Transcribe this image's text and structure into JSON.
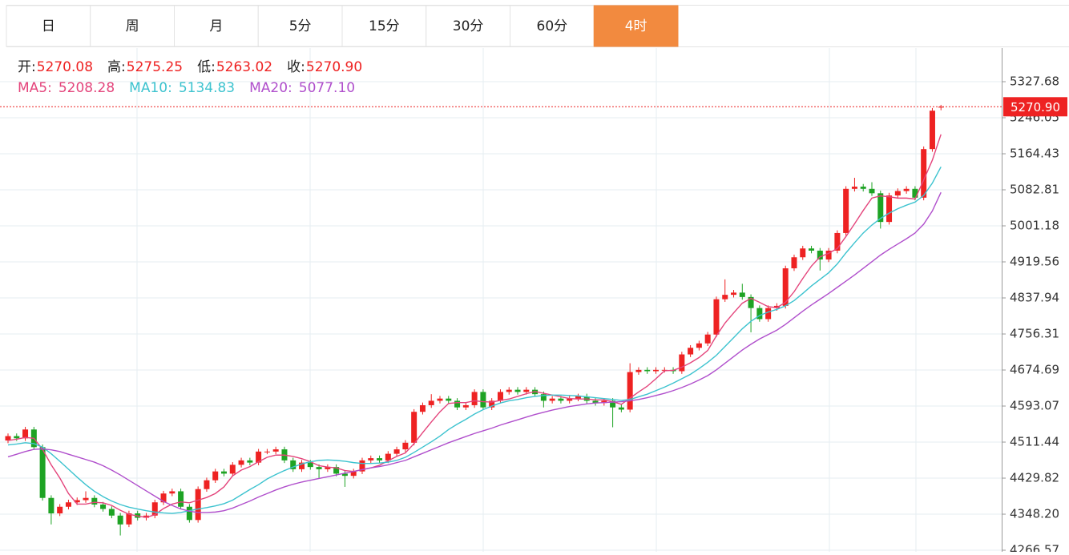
{
  "tabs": {
    "items": [
      "日",
      "周",
      "月",
      "5分",
      "15分",
      "30分",
      "60分",
      "4时"
    ],
    "active": 7,
    "active_color": "#f28a3f"
  },
  "chart_data": {
    "type": "candlestick",
    "quote": [
      {
        "label": "开:",
        "value": "5270.08"
      },
      {
        "label": "高:",
        "value": "5275.25"
      },
      {
        "label": "低:",
        "value": "5263.02"
      },
      {
        "label": "收:",
        "value": "5270.90"
      }
    ],
    "up_color": "#ee2222",
    "down_color": "#1ea324",
    "open": [
      4515,
      4525,
      4520,
      4540,
      4500,
      4385,
      4350,
      4365,
      4375,
      4380,
      4385,
      4370,
      4360,
      4345,
      4325,
      4350,
      4340,
      4345,
      4375,
      4395,
      4400,
      4365,
      4335,
      4405,
      4425,
      4445,
      4440,
      4460,
      4470,
      4465,
      4490,
      4490,
      4495,
      4470,
      4450,
      4465,
      4455,
      4450,
      4455,
      4440,
      4435,
      4445,
      4470,
      4475,
      4470,
      4485,
      4495,
      4510,
      4580,
      4595,
      4605,
      4610,
      4605,
      4590,
      4595,
      4625,
      4590,
      4605,
      4625,
      4630,
      4625,
      4630,
      4620,
      4605,
      4610,
      4605,
      4610,
      4615,
      4605,
      4600,
      4605,
      4590,
      4585,
      4670,
      4675,
      4672,
      4675,
      4675,
      4672,
      4710,
      4725,
      4735,
      4755,
      4835,
      4845,
      4850,
      4840,
      4815,
      4790,
      4815,
      4820,
      4905,
      4930,
      4950,
      4945,
      4925,
      4945,
      4985,
      5085,
      5090,
      5085,
      5075,
      5010,
      5070,
      5080,
      5085,
      5065,
      5175,
      5270.08
    ],
    "high": [
      4531,
      4531,
      4546,
      4546,
      4506,
      4391,
      4371,
      4381,
      4386,
      4400,
      4391,
      4376,
      4366,
      4351,
      4356,
      4356,
      4351,
      4381,
      4401,
      4406,
      4406,
      4371,
      4411,
      4431,
      4451,
      4451,
      4466,
      4476,
      4476,
      4496,
      4496,
      4501,
      4501,
      4476,
      4471,
      4471,
      4461,
      4461,
      4461,
      4446,
      4451,
      4476,
      4481,
      4481,
      4491,
      4501,
      4516,
      4586,
      4601,
      4620,
      4616,
      4616,
      4611,
      4601,
      4631,
      4631,
      4611,
      4631,
      4636,
      4636,
      4636,
      4636,
      4626,
      4616,
      4616,
      4616,
      4621,
      4621,
      4611,
      4611,
      4611,
      4596,
      4690,
      4681,
      4681,
      4681,
      4681,
      4681,
      4716,
      4731,
      4741,
      4761,
      4841,
      4880,
      4856,
      4870,
      4846,
      4821,
      4821,
      4826,
      4911,
      4936,
      4956,
      4956,
      4951,
      4951,
      4991,
      5091,
      5110,
      5096,
      5100,
      5081,
      5076,
      5086,
      5091,
      5091,
      5181,
      5268,
      5275.25
    ],
    "low": [
      4509,
      4514,
      4514,
      4494,
      4379,
      4325,
      4344,
      4359,
      4369,
      4374,
      4364,
      4354,
      4339,
      4300,
      4319,
      4334,
      4334,
      4339,
      4369,
      4389,
      4359,
      4329,
      4329,
      4399,
      4419,
      4434,
      4434,
      4454,
      4459,
      4459,
      4484,
      4484,
      4464,
      4444,
      4444,
      4449,
      4430,
      4444,
      4434,
      4410,
      4429,
      4439,
      4464,
      4464,
      4464,
      4479,
      4489,
      4504,
      4574,
      4589,
      4599,
      4599,
      4584,
      4584,
      4589,
      4584,
      4584,
      4599,
      4619,
      4619,
      4619,
      4614,
      4590,
      4599,
      4599,
      4599,
      4604,
      4599,
      4594,
      4594,
      4545,
      4579,
      4579,
      4664,
      4666,
      4666,
      4669,
      4666,
      4666,
      4704,
      4719,
      4729,
      4749,
      4829,
      4839,
      4834,
      4760,
      4784,
      4784,
      4809,
      4814,
      4899,
      4924,
      4939,
      4900,
      4919,
      4939,
      4979,
      5079,
      5079,
      5069,
      4995,
      5004,
      5064,
      5074,
      5059,
      5059,
      5169,
      5263.02
    ],
    "close": [
      4525,
      4520,
      4540,
      4500,
      4385,
      4350,
      4365,
      4375,
      4380,
      4385,
      4370,
      4360,
      4345,
      4325,
      4350,
      4340,
      4345,
      4375,
      4395,
      4400,
      4365,
      4335,
      4405,
      4425,
      4445,
      4440,
      4460,
      4470,
      4465,
      4490,
      4490,
      4495,
      4470,
      4450,
      4465,
      4455,
      4450,
      4455,
      4440,
      4435,
      4445,
      4470,
      4475,
      4470,
      4485,
      4495,
      4510,
      4580,
      4595,
      4605,
      4610,
      4605,
      4590,
      4595,
      4625,
      4590,
      4605,
      4625,
      4630,
      4625,
      4630,
      4620,
      4605,
      4610,
      4605,
      4610,
      4615,
      4605,
      4600,
      4605,
      4590,
      4585,
      4670,
      4675,
      4672,
      4675,
      4675,
      4672,
      4710,
      4725,
      4735,
      4755,
      4835,
      4845,
      4850,
      4840,
      4815,
      4790,
      4815,
      4820,
      4905,
      4930,
      4950,
      4945,
      4925,
      4945,
      4985,
      5085,
      5090,
      5085,
      5075,
      5010,
      5070,
      5080,
      5085,
      5065,
      5175,
      5262,
      5270.9
    ],
    "series": [
      {
        "name": "MA5:",
        "last_label": "5208.28",
        "color": "#e4457c",
        "values": [
          4515,
          4518,
          4522,
          4520,
          4495,
          4460,
          4430,
          4395,
          4371,
          4371,
          4375,
          4374,
          4368,
          4357,
          4348,
          4344,
          4341,
          4347,
          4361,
          4371,
          4376,
          4374,
          4380,
          4386,
          4395,
          4410,
          4435,
          4448,
          4456,
          4467,
          4477,
          4482,
          4482,
          4479,
          4474,
          4467,
          4458,
          4455,
          4453,
          4447,
          4445,
          4449,
          4453,
          4459,
          4469,
          4479,
          4487,
          4508,
          4533,
          4557,
          4580,
          4599,
          4601,
          4601,
          4605,
          4603,
          4602,
          4606,
          4609,
          4615,
          4621,
          4626,
          4622,
          4618,
          4614,
          4610,
          4609,
          4609,
          4607,
          4607,
          4603,
          4597,
          4611,
          4625,
          4638,
          4655,
          4673,
          4674,
          4681,
          4691,
          4703,
          4719,
          4752,
          4781,
          4804,
          4826,
          4837,
          4828,
          4818,
          4816,
          4828,
          4852,
          4882,
          4910,
          4931,
          4939,
          4950,
          4977,
          5006,
          5036,
          5064,
          5069,
          5067,
          5064,
          5064,
          5062,
          5105,
          5150,
          5208.28
        ]
      },
      {
        "name": "MA10:",
        "last_label": "5134.83",
        "color": "#3dc3cf",
        "values": [
          4505,
          4507,
          4510,
          4508,
          4500,
          4485,
          4468,
          4450,
          4432,
          4415,
          4400,
          4388,
          4378,
          4370,
          4364,
          4360,
          4356,
          4353,
          4351,
          4350,
          4352,
          4356,
          4360,
          4363,
          4367,
          4372,
          4380,
          4392,
          4404,
          4415,
          4428,
          4438,
          4447,
          4455,
          4462,
          4467,
          4470,
          4471,
          4470,
          4468,
          4465,
          4463,
          4463,
          4464,
          4466,
          4470,
          4477,
          4488,
          4500,
          4512,
          4525,
          4540,
          4552,
          4563,
          4575,
          4585,
          4593,
          4600,
          4605,
          4608,
          4612,
          4615,
          4617,
          4618,
          4618,
          4617,
          4616,
          4614,
          4612,
          4610,
          4608,
          4606,
          4608,
          4614,
          4620,
          4628,
          4636,
          4645,
          4655,
          4665,
          4678,
          4692,
          4708,
          4728,
          4748,
          4768,
          4785,
          4798,
          4806,
          4812,
          4820,
          4832,
          4848,
          4865,
          4880,
          4895,
          4915,
          4940,
          4963,
          4985,
          5003,
          5018,
          5030,
          5040,
          5048,
          5055,
          5070,
          5098,
          5134.83
        ]
      },
      {
        "name": "MA20:",
        "last_label": "5077.10",
        "color": "#b04fcc",
        "values": [
          4478,
          4484,
          4490,
          4495,
          4496,
          4494,
          4490,
          4484,
          4478,
          4472,
          4466,
          4458,
          4448,
          4437,
          4425,
          4413,
          4401,
          4389,
          4377,
          4368,
          4360,
          4355,
          4352,
          4352,
          4353,
          4356,
          4362,
          4370,
          4378,
          4387,
          4395,
          4403,
          4410,
          4416,
          4421,
          4425,
          4429,
          4433,
          4437,
          4441,
          4445,
          4449,
          4453,
          4456,
          4460,
          4465,
          4470,
          4478,
          4486,
          4494,
          4502,
          4510,
          4517,
          4524,
          4531,
          4537,
          4543,
          4550,
          4556,
          4562,
          4568,
          4574,
          4579,
          4584,
          4588,
          4592,
          4595,
          4598,
          4600,
          4601,
          4602,
          4603,
          4605,
          4608,
          4612,
          4617,
          4622,
          4628,
          4635,
          4643,
          4652,
          4662,
          4675,
          4690,
          4705,
          4720,
          4733,
          4745,
          4755,
          4765,
          4778,
          4793,
          4808,
          4822,
          4835,
          4848,
          4862,
          4876,
          4890,
          4905,
          4920,
          4935,
          4948,
          4960,
          4972,
          4985,
          5005,
          5035,
          5077.1
        ]
      }
    ],
    "price_line": {
      "value": 5270.9,
      "label": "5270.90",
      "color": "#ee2222"
    },
    "ylim": [
      4262.99,
      5403.86
    ],
    "yticks": [
      5327.68,
      5246.05,
      5164.43,
      5082.81,
      5001.18,
      4919.56,
      4837.94,
      4756.31,
      4674.69,
      4593.07,
      4511.44,
      4429.82,
      {
        "value": 4348.2,
        "label": "4348.20"
      },
      4266.57
    ],
    "grid": true
  }
}
